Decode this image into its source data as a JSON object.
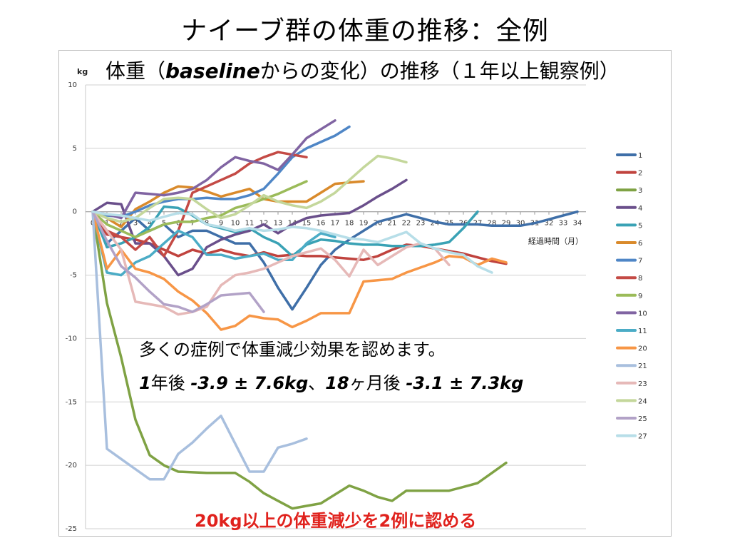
{
  "slide": {
    "title": "ナイーブ群の体重の推移：全例"
  },
  "chart_data": {
    "type": "line",
    "title_prefix": "体重（",
    "title_bold": "baseline",
    "title_suffix": "からの変化）の推移（１年以上観察例）",
    "ylabel": "kg",
    "xlabel": "経過時間（月）",
    "ylim": [
      -25,
      10
    ],
    "yticks": [
      10,
      5,
      0,
      -5,
      -10,
      -15,
      -20,
      -25
    ],
    "xlim": [
      0,
      34
    ],
    "xticks": [
      "0",
      "1",
      "2",
      "3",
      "4",
      "5",
      "6",
      "7",
      "8",
      "9",
      "10",
      "11",
      "12",
      "13",
      "14",
      "15",
      "16",
      "17",
      "18",
      "19",
      "20",
      "21",
      "22",
      "23",
      "24",
      "25",
      "26",
      "27",
      "28",
      "29",
      "30",
      "31",
      "32",
      "33",
      "34"
    ],
    "legend_position": "right",
    "series": [
      {
        "name": "1",
        "color": "#3f6fa8",
        "x": [
          0,
          1,
          2,
          3,
          4,
          5,
          6,
          7,
          8,
          9,
          10,
          11,
          12,
          13,
          14,
          15,
          16,
          17,
          18,
          19,
          20,
          21,
          22,
          23,
          24,
          25,
          26,
          27,
          28,
          29,
          30,
          31,
          32,
          33,
          34
        ],
        "y": [
          0,
          -2.5,
          -1.5,
          -0.5,
          -1.5,
          -1.0,
          -2.0,
          -1.5,
          -1.5,
          -2.0,
          -2.5,
          -2.5,
          -4.0,
          -6.0,
          -7.7,
          -6.0,
          -4.2,
          -3.0,
          -2.2,
          -1.5,
          -0.8,
          -0.5,
          -0.2,
          -0.5,
          -0.8,
          -1.0,
          -1.0,
          -1.0,
          -1.1,
          -1.1,
          -1.1,
          -0.9,
          -0.6,
          -0.3,
          0.0
        ]
      },
      {
        "name": "2",
        "color": "#c0433e",
        "x": [
          0,
          1,
          2,
          3,
          4,
          5,
          6,
          7,
          8,
          9,
          10,
          11,
          12,
          13,
          14,
          15,
          16,
          17,
          18,
          19,
          20,
          21,
          22,
          23,
          24,
          25,
          26,
          27,
          28,
          29
        ],
        "y": [
          0,
          -1.8,
          -2.0,
          -2.2,
          -2.5,
          -3.0,
          -3.5,
          -3.0,
          -3.3,
          -3.0,
          -3.3,
          -3.5,
          -3.2,
          -3.5,
          -3.4,
          -3.5,
          -3.5,
          -3.6,
          -3.7,
          -3.8,
          -3.5,
          -3.0,
          -2.6,
          -2.7,
          -2.9,
          -3.1,
          -3.3,
          -3.6,
          -3.9,
          -4.1
        ]
      },
      {
        "name": "3",
        "color": "#7fa244",
        "x": [
          0,
          1,
          2,
          3,
          4,
          5,
          6,
          7,
          8,
          9,
          10,
          11,
          12,
          13,
          14,
          15,
          16,
          17,
          18,
          19,
          20,
          21,
          22,
          23,
          24,
          25,
          26,
          27,
          28,
          29
        ],
        "y": [
          0,
          -7.2,
          -11.5,
          -16.4,
          -19.2,
          -20.0,
          -20.5,
          -20.55,
          -20.6,
          -20.6,
          -20.6,
          -21.3,
          -22.2,
          -22.8,
          -23.4,
          -23.2,
          -23.0,
          -22.3,
          -21.6,
          -22.0,
          -22.5,
          -22.8,
          -22.0,
          -22.0,
          -22.0,
          -22.0,
          -21.7,
          -21.4,
          -20.6,
          -19.8
        ]
      },
      {
        "name": "4",
        "color": "#6a4f8b",
        "x": [
          0,
          1,
          2,
          3,
          4,
          5,
          6,
          7,
          8,
          9,
          10,
          11,
          12,
          13,
          14,
          15,
          16,
          17,
          18,
          19,
          20,
          21,
          22
        ],
        "y": [
          0,
          0.7,
          0.6,
          -2.5,
          -2.5,
          -3.5,
          -5.0,
          -4.5,
          -2.8,
          -2.2,
          -1.8,
          -1.5,
          -1.0,
          -1.7,
          -1.0,
          -0.5,
          -0.3,
          -0.2,
          -0.1,
          0.5,
          1.2,
          1.8,
          2.5
        ]
      },
      {
        "name": "5",
        "color": "#3aa2b5",
        "x": [
          0,
          1,
          2,
          3,
          4,
          5,
          6,
          7,
          8,
          9,
          10,
          11,
          12,
          13,
          14,
          15,
          16,
          17,
          18,
          19,
          20,
          21,
          22,
          23,
          24,
          25,
          26,
          27
        ],
        "y": [
          0,
          -2.8,
          -2.5,
          -2.0,
          -1.2,
          0.4,
          0.3,
          -0.3,
          -1.0,
          -1.3,
          -1.6,
          -1.3,
          -2.0,
          -2.5,
          -3.5,
          -2.6,
          -2.2,
          -2.3,
          -2.5,
          -2.6,
          -2.6,
          -2.7,
          -2.7,
          -2.7,
          -2.6,
          -2.4,
          -1.3,
          0.0
        ]
      },
      {
        "name": "6",
        "color": "#d98a2b",
        "x": [
          0,
          1,
          2,
          3,
          4,
          5,
          6,
          7,
          8,
          9,
          10,
          11,
          12,
          13,
          14,
          15,
          16,
          17,
          18,
          19
        ],
        "y": [
          0,
          -0.5,
          -1.2,
          0.2,
          0.8,
          1.5,
          2.0,
          1.9,
          1.6,
          1.2,
          1.5,
          1.8,
          1.0,
          0.8,
          0.8,
          0.8,
          1.5,
          2.2,
          2.3,
          2.4
        ]
      },
      {
        "name": "7",
        "color": "#4f86c6",
        "x": [
          0,
          1,
          2,
          3,
          4,
          5,
          6,
          7,
          8,
          9,
          10,
          11,
          12,
          13,
          14,
          15,
          16,
          17,
          18
        ],
        "y": [
          0,
          -0.3,
          -0.4,
          0.0,
          0.5,
          0.8,
          1.0,
          1.0,
          1.1,
          1.0,
          1.0,
          1.3,
          1.8,
          3.0,
          4.3,
          5.0,
          5.5,
          6.0,
          6.7
        ]
      },
      {
        "name": "8",
        "color": "#c44a45",
        "x": [
          0,
          1,
          2,
          3,
          4,
          5,
          6,
          7,
          8,
          9,
          10,
          11,
          12,
          13,
          14,
          15
        ],
        "y": [
          0,
          -1.5,
          -2.0,
          -3.0,
          -2.0,
          -3.5,
          -1.5,
          1.5,
          2.0,
          2.5,
          3.0,
          3.8,
          4.3,
          4.7,
          4.5,
          4.3
        ]
      },
      {
        "name": "9",
        "color": "#9bbb59",
        "x": [
          0,
          1,
          2,
          3,
          4,
          5,
          6,
          7,
          8,
          9,
          10,
          11,
          12,
          13,
          14,
          15
        ],
        "y": [
          0,
          -1.0,
          -1.5,
          -2.0,
          -1.5,
          -1.0,
          -0.8,
          -0.8,
          -0.5,
          -0.3,
          0.3,
          0.6,
          1.0,
          1.4,
          1.9,
          2.4
        ]
      },
      {
        "name": "10",
        "color": "#8064a2",
        "x": [
          0,
          1,
          2,
          3,
          4,
          5,
          6,
          7,
          8,
          9,
          10,
          11,
          12,
          13,
          14,
          15,
          16,
          17
        ],
        "y": [
          0,
          -0.2,
          -0.5,
          1.5,
          1.4,
          1.3,
          1.5,
          1.8,
          2.5,
          3.5,
          4.3,
          4.0,
          3.8,
          3.3,
          4.5,
          5.8,
          6.5,
          7.2
        ]
      },
      {
        "name": "11",
        "color": "#4bacc6",
        "x": [
          0,
          1,
          2,
          3,
          4,
          5,
          6,
          7,
          8,
          9,
          10,
          11,
          12,
          13,
          14,
          15,
          16,
          17
        ],
        "y": [
          0,
          -4.8,
          -5.0,
          -4.0,
          -3.5,
          -2.5,
          -1.5,
          -2.0,
          -3.4,
          -3.4,
          -3.7,
          -3.5,
          -3.3,
          -3.8,
          -3.8,
          -2.5,
          -1.7,
          -2.0
        ]
      },
      {
        "name": "20",
        "color": "#f79646",
        "x": [
          0,
          1,
          2,
          3,
          4,
          5,
          6,
          7,
          8,
          9,
          10,
          11,
          12,
          13,
          14,
          15,
          16,
          17,
          18,
          19,
          20,
          21,
          22,
          23,
          24,
          25,
          26,
          27,
          28,
          29
        ],
        "y": [
          0,
          -4.5,
          -3.0,
          -4.5,
          -4.8,
          -5.3,
          -6.3,
          -7.0,
          -8.0,
          -9.3,
          -9.0,
          -8.2,
          -8.4,
          -8.5,
          -9.1,
          -8.6,
          -8.0,
          -8.0,
          -8.0,
          -5.5,
          -5.4,
          -5.3,
          -4.8,
          -4.4,
          -4.0,
          -3.5,
          -3.6,
          -4.2,
          -3.7,
          -4.0
        ]
      },
      {
        "name": "21",
        "color": "#a8bfde",
        "x": [
          0,
          1,
          2,
          3,
          4,
          5,
          6,
          7,
          8,
          9,
          10,
          11,
          12,
          13,
          14,
          15
        ],
        "y": [
          0,
          -18.7,
          -19.5,
          -20.3,
          -21.1,
          -21.1,
          -19.1,
          -18.2,
          -17.1,
          -16.1,
          -18.3,
          -20.5,
          -20.5,
          -18.6,
          -18.3,
          -17.9
        ]
      },
      {
        "name": "23",
        "color": "#e6b9b8",
        "x": [
          0,
          1,
          2,
          3,
          4,
          5,
          6,
          7,
          8,
          9,
          10,
          11,
          12,
          13,
          14,
          15,
          16,
          17,
          18,
          19,
          20,
          21,
          22,
          23,
          24,
          25
        ],
        "y": [
          0,
          -1.5,
          -3.0,
          -7.1,
          -7.3,
          -7.5,
          -8.1,
          -7.9,
          -7.5,
          -5.8,
          -5.0,
          -4.8,
          -4.5,
          -4.0,
          -3.5,
          -3.2,
          -2.9,
          -3.8,
          -5.1,
          -3.0,
          -4.2,
          -3.5,
          -2.8,
          -2.5,
          -2.9,
          -4.2
        ]
      },
      {
        "name": "24",
        "color": "#c4d79b",
        "x": [
          0,
          1,
          2,
          3,
          4,
          5,
          6,
          7,
          8,
          9,
          10,
          11,
          12,
          13,
          14,
          15,
          16,
          17,
          18,
          19,
          20,
          21,
          22
        ],
        "y": [
          0,
          -0.5,
          -0.8,
          -0.5,
          0.3,
          1.0,
          1.1,
          1.0,
          0.2,
          -0.5,
          -0.2,
          0.5,
          1.3,
          0.8,
          0.5,
          0.3,
          0.8,
          1.5,
          2.5,
          3.5,
          4.4,
          4.2,
          3.9
        ]
      },
      {
        "name": "25",
        "color": "#b2a2c7",
        "x": [
          0,
          1,
          2,
          3,
          4,
          5,
          6,
          7,
          8,
          9,
          10,
          11,
          12
        ],
        "y": [
          0,
          -2.3,
          -4.3,
          -5.2,
          -6.3,
          -7.3,
          -7.5,
          -7.9,
          -7.3,
          -6.6,
          -6.5,
          -6.4,
          -7.9
        ]
      },
      {
        "name": "27",
        "color": "#b7dee8",
        "x": [
          0,
          1,
          2,
          3,
          4,
          5,
          6,
          7,
          8,
          9,
          10,
          11,
          12,
          13,
          14,
          15,
          16,
          17,
          18,
          19,
          20,
          21,
          22,
          23,
          24,
          25,
          26,
          27,
          28
        ],
        "y": [
          0,
          -0.2,
          -0.3,
          -0.5,
          -0.7,
          -0.4,
          -0.1,
          -0.2,
          -1.0,
          -1.2,
          -1.5,
          -1.3,
          -1.5,
          -1.4,
          -1.2,
          -1.3,
          -1.5,
          -1.8,
          -2.1,
          -2.2,
          -2.4,
          -2.0,
          -1.6,
          -2.5,
          -2.9,
          -3.2,
          -3.4,
          -4.3,
          -4.8
        ]
      }
    ]
  },
  "annotations": {
    "line1": "多くの症例で体重減少効果を認めます。",
    "line2_a": "1",
    "line2_b": "年後 ",
    "line2_c": "-3.9 ± 7.6kg",
    "line2_d": "、",
    "line2_e": "18",
    "line2_f": "ヶ月後 ",
    "line2_g": "-3.1 ± 7.3kg",
    "line3_a": "20kg",
    "line3_b": "以上の体重減少を",
    "line3_c": "2",
    "line3_d": "例に認める"
  }
}
